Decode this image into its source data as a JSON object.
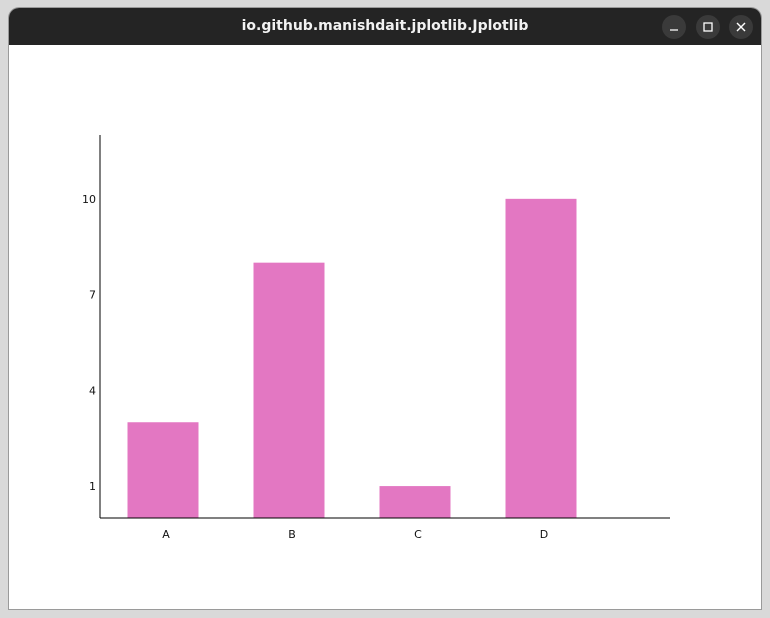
{
  "window": {
    "title": "io.github.manishdait.jplotlib.Jplotlib",
    "buttons": [
      "minimize",
      "maximize",
      "close"
    ]
  },
  "chart_data": {
    "type": "bar",
    "title": "",
    "xlabel": "",
    "ylabel": "",
    "categories": [
      "A",
      "B",
      "C",
      "D"
    ],
    "values": [
      3,
      8,
      1,
      10
    ],
    "yticks": [
      1,
      4,
      7,
      10
    ],
    "ylim": [
      0,
      12
    ],
    "grid": false,
    "legend": "none",
    "bar_color": "#e377c2"
  }
}
